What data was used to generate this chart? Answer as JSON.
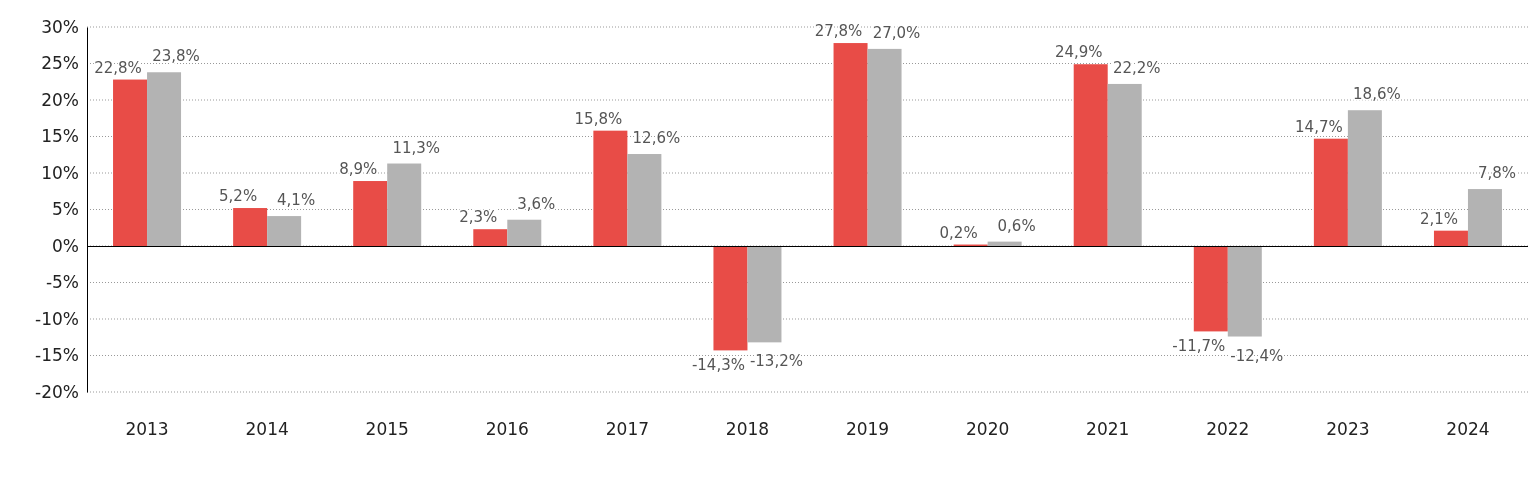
{
  "chart_data": {
    "type": "bar",
    "categories": [
      "2013",
      "2014",
      "2015",
      "2016",
      "2017",
      "2018",
      "2019",
      "2020",
      "2021",
      "2022",
      "2023",
      "2024"
    ],
    "series": [
      {
        "color": "#e84c47",
        "values": [
          22.8,
          5.2,
          8.9,
          2.3,
          15.8,
          -14.3,
          27.8,
          0.2,
          24.9,
          -11.7,
          14.7,
          2.1
        ],
        "value_labels": [
          "22,8%",
          "5,2%",
          "8,9%",
          "2,3%",
          "15,8%",
          "-14,3%",
          "27,8%",
          "0,2%",
          "24,9%",
          "-11,7%",
          "14,7%",
          "2,1%"
        ]
      },
      {
        "color": "#b3b3b3",
        "values": [
          23.8,
          4.1,
          11.3,
          3.6,
          12.6,
          -13.2,
          27.0,
          0.6,
          22.2,
          -12.4,
          18.6,
          7.8
        ],
        "value_labels": [
          "23,8%",
          "4,1%",
          "11,3%",
          "3,6%",
          "12,6%",
          "-13,2%",
          "27,0%",
          "0,6%",
          "22,2%",
          "-12,4%",
          "18,6%",
          "7,8%"
        ]
      }
    ],
    "ylim": [
      -20,
      30
    ],
    "yticks": [
      {
        "value": -20,
        "label": "-20%"
      },
      {
        "value": -15,
        "label": "-15%"
      },
      {
        "value": -10,
        "label": "-10%"
      },
      {
        "value": -5,
        "label": "-5%"
      },
      {
        "value": 0,
        "label": "0%"
      },
      {
        "value": 5,
        "label": "5%"
      },
      {
        "value": 10,
        "label": "10%"
      },
      {
        "value": 15,
        "label": "15%"
      },
      {
        "value": 20,
        "label": "20%"
      },
      {
        "value": 25,
        "label": "25%"
      },
      {
        "value": 30,
        "label": "30%"
      }
    ],
    "grid": "y"
  }
}
